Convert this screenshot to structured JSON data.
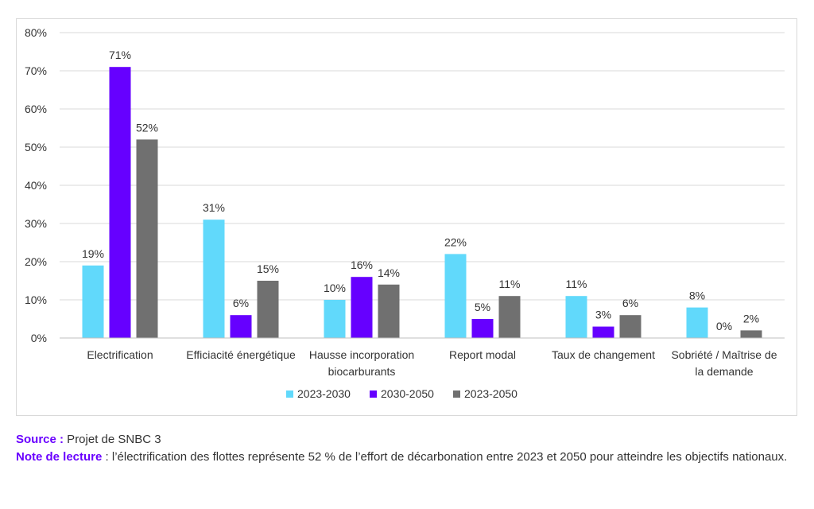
{
  "chart_data": {
    "type": "bar",
    "categories": [
      [
        "Electrification"
      ],
      [
        "Efficiacité énergétique"
      ],
      [
        "Hausse incorporation",
        "biocarburants"
      ],
      [
        "Report modal"
      ],
      [
        "Taux de changement"
      ],
      [
        "Sobriété / Maîtrise de",
        "la demande"
      ]
    ],
    "series": [
      {
        "name": "2023-2030",
        "color": "#61d9fb",
        "values": [
          19,
          31,
          10,
          22,
          11,
          8
        ]
      },
      {
        "name": "2030-2050",
        "color": "#6600ff",
        "values": [
          71,
          6,
          16,
          5,
          3,
          0
        ]
      },
      {
        "name": "2023-2050",
        "color": "#707070",
        "values": [
          52,
          15,
          14,
          11,
          6,
          2
        ]
      }
    ],
    "ylim": [
      0,
      80
    ],
    "yticks": [
      0,
      10,
      20,
      30,
      40,
      50,
      60,
      70,
      80
    ],
    "value_suffix": "%",
    "grid": true,
    "legend_position": "bottom"
  },
  "notes": {
    "source_key": "Source :",
    "source_text": " Projet de SNBC 3",
    "reading_key": "Note de lecture",
    "reading_text": " : l’électrification des flottes représente 52 % de l’effort de décarbonation entre 2023 et 2050 pour atteindre les objectifs nationaux."
  }
}
